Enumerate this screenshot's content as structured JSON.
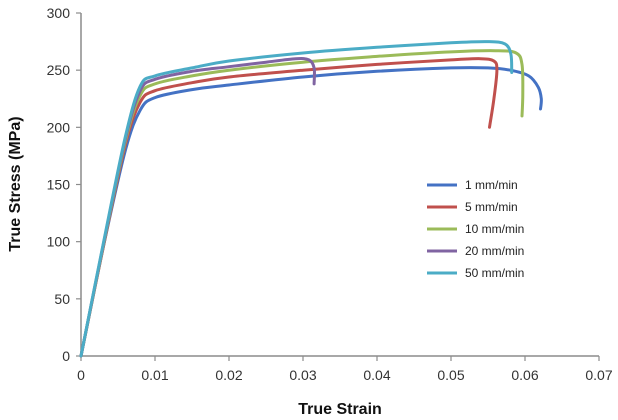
{
  "chart_data": {
    "type": "line",
    "title": "",
    "xlabel": "True Strain",
    "ylabel": "True Stress (MPa)",
    "xlim": [
      0,
      0.07
    ],
    "ylim": [
      0,
      300
    ],
    "x_ticks": [
      "0",
      "0.01",
      "0.02",
      "0.03",
      "0.04",
      "0.05",
      "0.06",
      "0.07"
    ],
    "x_tick_values": [
      0,
      0.01,
      0.02,
      0.03,
      0.04,
      0.05,
      0.06,
      0.07
    ],
    "y_ticks": [
      "0",
      "50",
      "100",
      "150",
      "200",
      "250",
      "300"
    ],
    "y_tick_values": [
      0,
      50,
      100,
      150,
      200,
      250,
      300
    ],
    "grid": false,
    "legend_position": "center-right",
    "series": [
      {
        "name": "1 mm/min",
        "color": "#4472C4",
        "points": [
          [
            0,
            0
          ],
          [
            0.003,
            95
          ],
          [
            0.006,
            180
          ],
          [
            0.008,
            215
          ],
          [
            0.01,
            226
          ],
          [
            0.015,
            233
          ],
          [
            0.02,
            237
          ],
          [
            0.03,
            244
          ],
          [
            0.04,
            249
          ],
          [
            0.05,
            252
          ],
          [
            0.055,
            252
          ],
          [
            0.058,
            250
          ],
          [
            0.0605,
            245
          ],
          [
            0.0618,
            235
          ],
          [
            0.0622,
            225
          ],
          [
            0.0621,
            216
          ]
        ]
      },
      {
        "name": "5 mm/min",
        "color": "#C0504D",
        "points": [
          [
            0,
            0
          ],
          [
            0.003,
            95
          ],
          [
            0.006,
            185
          ],
          [
            0.008,
            222
          ],
          [
            0.01,
            232
          ],
          [
            0.015,
            239
          ],
          [
            0.02,
            244
          ],
          [
            0.03,
            250
          ],
          [
            0.04,
            255
          ],
          [
            0.05,
            259
          ],
          [
            0.054,
            260
          ],
          [
            0.0558,
            258
          ],
          [
            0.0562,
            250
          ],
          [
            0.0558,
            225
          ],
          [
            0.0552,
            200
          ]
        ]
      },
      {
        "name": "10 mm/min",
        "color": "#9BBB59",
        "points": [
          [
            0,
            0
          ],
          [
            0.003,
            96
          ],
          [
            0.006,
            188
          ],
          [
            0.008,
            228
          ],
          [
            0.01,
            238
          ],
          [
            0.015,
            245
          ],
          [
            0.02,
            250
          ],
          [
            0.03,
            257
          ],
          [
            0.04,
            262
          ],
          [
            0.05,
            266
          ],
          [
            0.056,
            267
          ],
          [
            0.0588,
            265
          ],
          [
            0.0596,
            255
          ],
          [
            0.0597,
            230
          ],
          [
            0.0596,
            210
          ]
        ]
      },
      {
        "name": "20 mm/min",
        "color": "#8064A2",
        "points": [
          [
            0,
            0
          ],
          [
            0.003,
            97
          ],
          [
            0.006,
            190
          ],
          [
            0.008,
            232
          ],
          [
            0.01,
            242
          ],
          [
            0.015,
            249
          ],
          [
            0.02,
            253
          ],
          [
            0.025,
            257
          ],
          [
            0.029,
            260
          ],
          [
            0.0308,
            259
          ],
          [
            0.0315,
            252
          ],
          [
            0.0315,
            238
          ]
        ]
      },
      {
        "name": "50 mm/min",
        "color": "#4BACC6",
        "points": [
          [
            0,
            0
          ],
          [
            0.003,
            98
          ],
          [
            0.006,
            192
          ],
          [
            0.008,
            236
          ],
          [
            0.01,
            245
          ],
          [
            0.015,
            252
          ],
          [
            0.02,
            258
          ],
          [
            0.03,
            265
          ],
          [
            0.04,
            270
          ],
          [
            0.05,
            274
          ],
          [
            0.055,
            275
          ],
          [
            0.0573,
            273
          ],
          [
            0.0581,
            264
          ],
          [
            0.0582,
            248
          ]
        ]
      }
    ]
  }
}
